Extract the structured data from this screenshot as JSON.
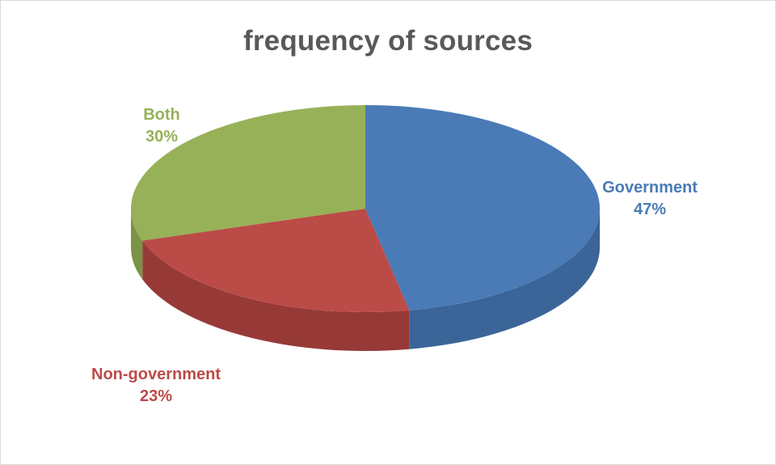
{
  "chart_data": {
    "type": "pie",
    "title": "frequency of sources",
    "slices": [
      {
        "label": "Government",
        "value": 47,
        "display": "47%",
        "color": "#4a7bb7",
        "side_color": "#3b6598",
        "label_color": "#4a7bb7"
      },
      {
        "label": "Non-government",
        "value": 23,
        "display": "23%",
        "color": "#bb4b47",
        "side_color": "#973a37",
        "label_color": "#bb4b47"
      },
      {
        "label": "Both",
        "value": 30,
        "display": "30%",
        "color": "#97b158",
        "side_color": "#7b9345",
        "label_color": "#97b158"
      }
    ],
    "legend": "none",
    "style": "3d"
  }
}
